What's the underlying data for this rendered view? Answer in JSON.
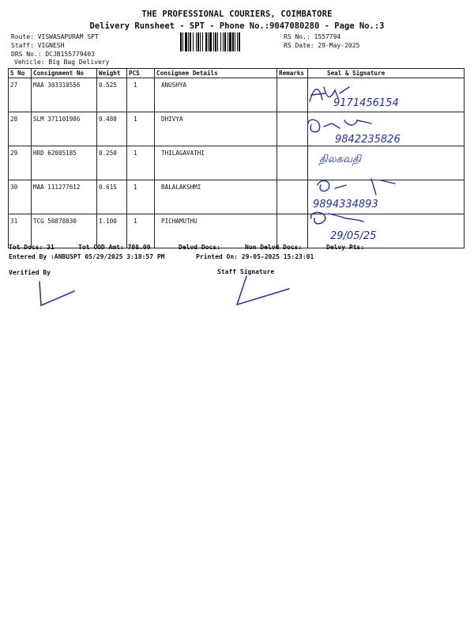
{
  "header": {
    "company": "THE PROFESSIONAL COURIERS, COIMBATORE",
    "subtitle": "Delivery Runsheet - SPT - Phone No.:9047080280 - Page No.:3",
    "route": "Route: VISWASAPURAM SPT",
    "staff": "Staff: VIGNESH",
    "drs": "DRS No.: DCJB155779403",
    "vehicle": "Vehicle: Big Bag Delivery",
    "rs_no": "RS No.: 1557794",
    "rs_date": "RS Date: 29-May-2025"
  },
  "table": {
    "columns": [
      "S No",
      "Consignment No",
      "Weight",
      "PCS",
      "Consignee Details",
      "Remarks",
      "Seal & Signature"
    ],
    "rows": [
      {
        "sno": "27",
        "consignment": "MAA 303310556",
        "weight": "0.525",
        "pcs": "1",
        "consignee": "ANUSHYA",
        "remarks": "",
        "sig_text": "9171456154"
      },
      {
        "sno": "28",
        "consignment": "SLM 371101986",
        "weight": "0.480",
        "pcs": "1",
        "consignee": "DHIVYA",
        "remarks": "",
        "sig_text": "9842235826"
      },
      {
        "sno": "29",
        "consignment": "HRD 62005185",
        "weight": "0.250",
        "pcs": "1",
        "consignee": "THILAGAVATHI",
        "remarks": "",
        "sig_text": "திலகவதி"
      },
      {
        "sno": "30",
        "consignment": "MAA 111277612",
        "weight": "0.615",
        "pcs": "1",
        "consignee": "BALALAKSHMI",
        "remarks": "",
        "sig_text": "9894334893"
      },
      {
        "sno": "31",
        "consignment": "TCG 50878830",
        "weight": "1.100",
        "pcs": "1",
        "consignee": "PICHAMUTHU",
        "remarks": "",
        "sig_text": "29/05/25"
      }
    ]
  },
  "footer": {
    "tot_docs": "Tot Docs:  31",
    "tot_cod": "Tot COD Amt:  708.00",
    "delvd_docs": "Delvd Docs:",
    "non_delvd": "Non Delvd Docs:",
    "delvy_pts": "Delvy Pts:",
    "entered_by": "Entered By :ANBUSPT 05/29/2025 3:18:57 PM",
    "printed_on": "Printed On: 29-05-2025 15:23:01",
    "verified_by": "Verified By",
    "staff_signature": "Staff Signature"
  },
  "colors": {
    "ink": "#1f2f9e",
    "text": "#111111"
  }
}
